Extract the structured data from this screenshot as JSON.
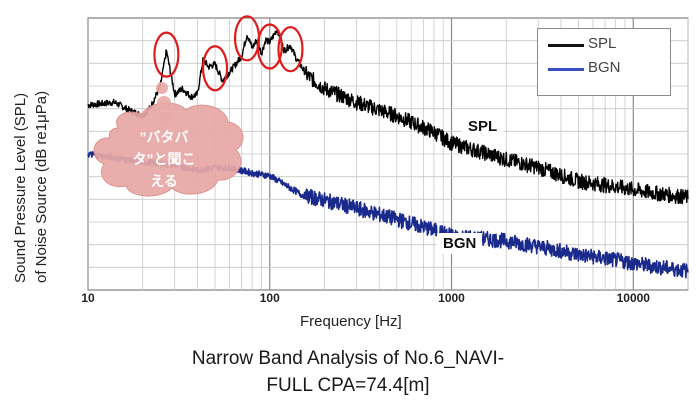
{
  "chart_data": {
    "type": "line",
    "title": "Narrow Band Analysis of No.6_NAVI-",
    "title_line2": "FULL  CPA=74.4[m]",
    "xlabel": "Frequency [Hz]",
    "ylabel_line1": "Sound Pressure Level (SPL)",
    "ylabel_line2": "of Noise Source (dB re1μPa)",
    "xscale": "log",
    "xlim": [
      10,
      20000
    ],
    "xticks": [
      "10",
      "100",
      "1000",
      "10000"
    ],
    "grid": true,
    "legend_position": "top-right",
    "series": [
      {
        "name": "SPL",
        "color": "#000000",
        "points": [
          [
            10,
            0.68
          ],
          [
            14,
            0.69
          ],
          [
            17,
            0.66
          ],
          [
            20,
            0.64
          ],
          [
            22,
            0.67
          ],
          [
            25,
            0.75
          ],
          [
            27,
            0.88
          ],
          [
            30,
            0.72
          ],
          [
            33,
            0.74
          ],
          [
            37,
            0.71
          ],
          [
            40,
            0.72
          ],
          [
            43,
            0.85
          ],
          [
            46,
            0.82
          ],
          [
            50,
            0.83
          ],
          [
            55,
            0.77
          ],
          [
            60,
            0.8
          ],
          [
            65,
            0.83
          ],
          [
            70,
            0.86
          ],
          [
            75,
            0.94
          ],
          [
            80,
            0.89
          ],
          [
            85,
            0.92
          ],
          [
            90,
            0.87
          ],
          [
            95,
            0.92
          ],
          [
            100,
            0.91
          ],
          [
            110,
            0.96
          ],
          [
            120,
            0.88
          ],
          [
            130,
            0.9
          ],
          [
            140,
            0.85
          ],
          [
            160,
            0.79
          ],
          [
            200,
            0.74
          ],
          [
            300,
            0.69
          ],
          [
            500,
            0.64
          ],
          [
            800,
            0.58
          ],
          [
            1000,
            0.54
          ],
          [
            2000,
            0.48
          ],
          [
            3000,
            0.45
          ],
          [
            5000,
            0.4
          ],
          [
            8000,
            0.38
          ],
          [
            12000,
            0.36
          ],
          [
            20000,
            0.34
          ]
        ]
      },
      {
        "name": "BGN",
        "color": "#1a2a8c",
        "points": [
          [
            10,
            0.5
          ],
          [
            20,
            0.47
          ],
          [
            30,
            0.46
          ],
          [
            40,
            0.44
          ],
          [
            50,
            0.45
          ],
          [
            60,
            0.45
          ],
          [
            80,
            0.43
          ],
          [
            100,
            0.42
          ],
          [
            150,
            0.35
          ],
          [
            200,
            0.33
          ],
          [
            300,
            0.3
          ],
          [
            500,
            0.26
          ],
          [
            800,
            0.22
          ],
          [
            1000,
            0.2
          ],
          [
            2000,
            0.18
          ],
          [
            3000,
            0.16
          ],
          [
            5000,
            0.13
          ],
          [
            8000,
            0.11
          ],
          [
            12000,
            0.09
          ],
          [
            20000,
            0.07
          ]
        ]
      }
    ],
    "annotations": [
      {
        "name": "spl-tag",
        "text": "SPL"
      },
      {
        "name": "bgn-tag",
        "text": "BGN"
      },
      {
        "name": "callout",
        "text_line1": "”バタバ",
        "text_line2": "タ”と聞こ",
        "text_line3": "える"
      }
    ],
    "highlighted_peaks_hz": [
      27,
      50,
      75,
      100,
      130
    ]
  }
}
